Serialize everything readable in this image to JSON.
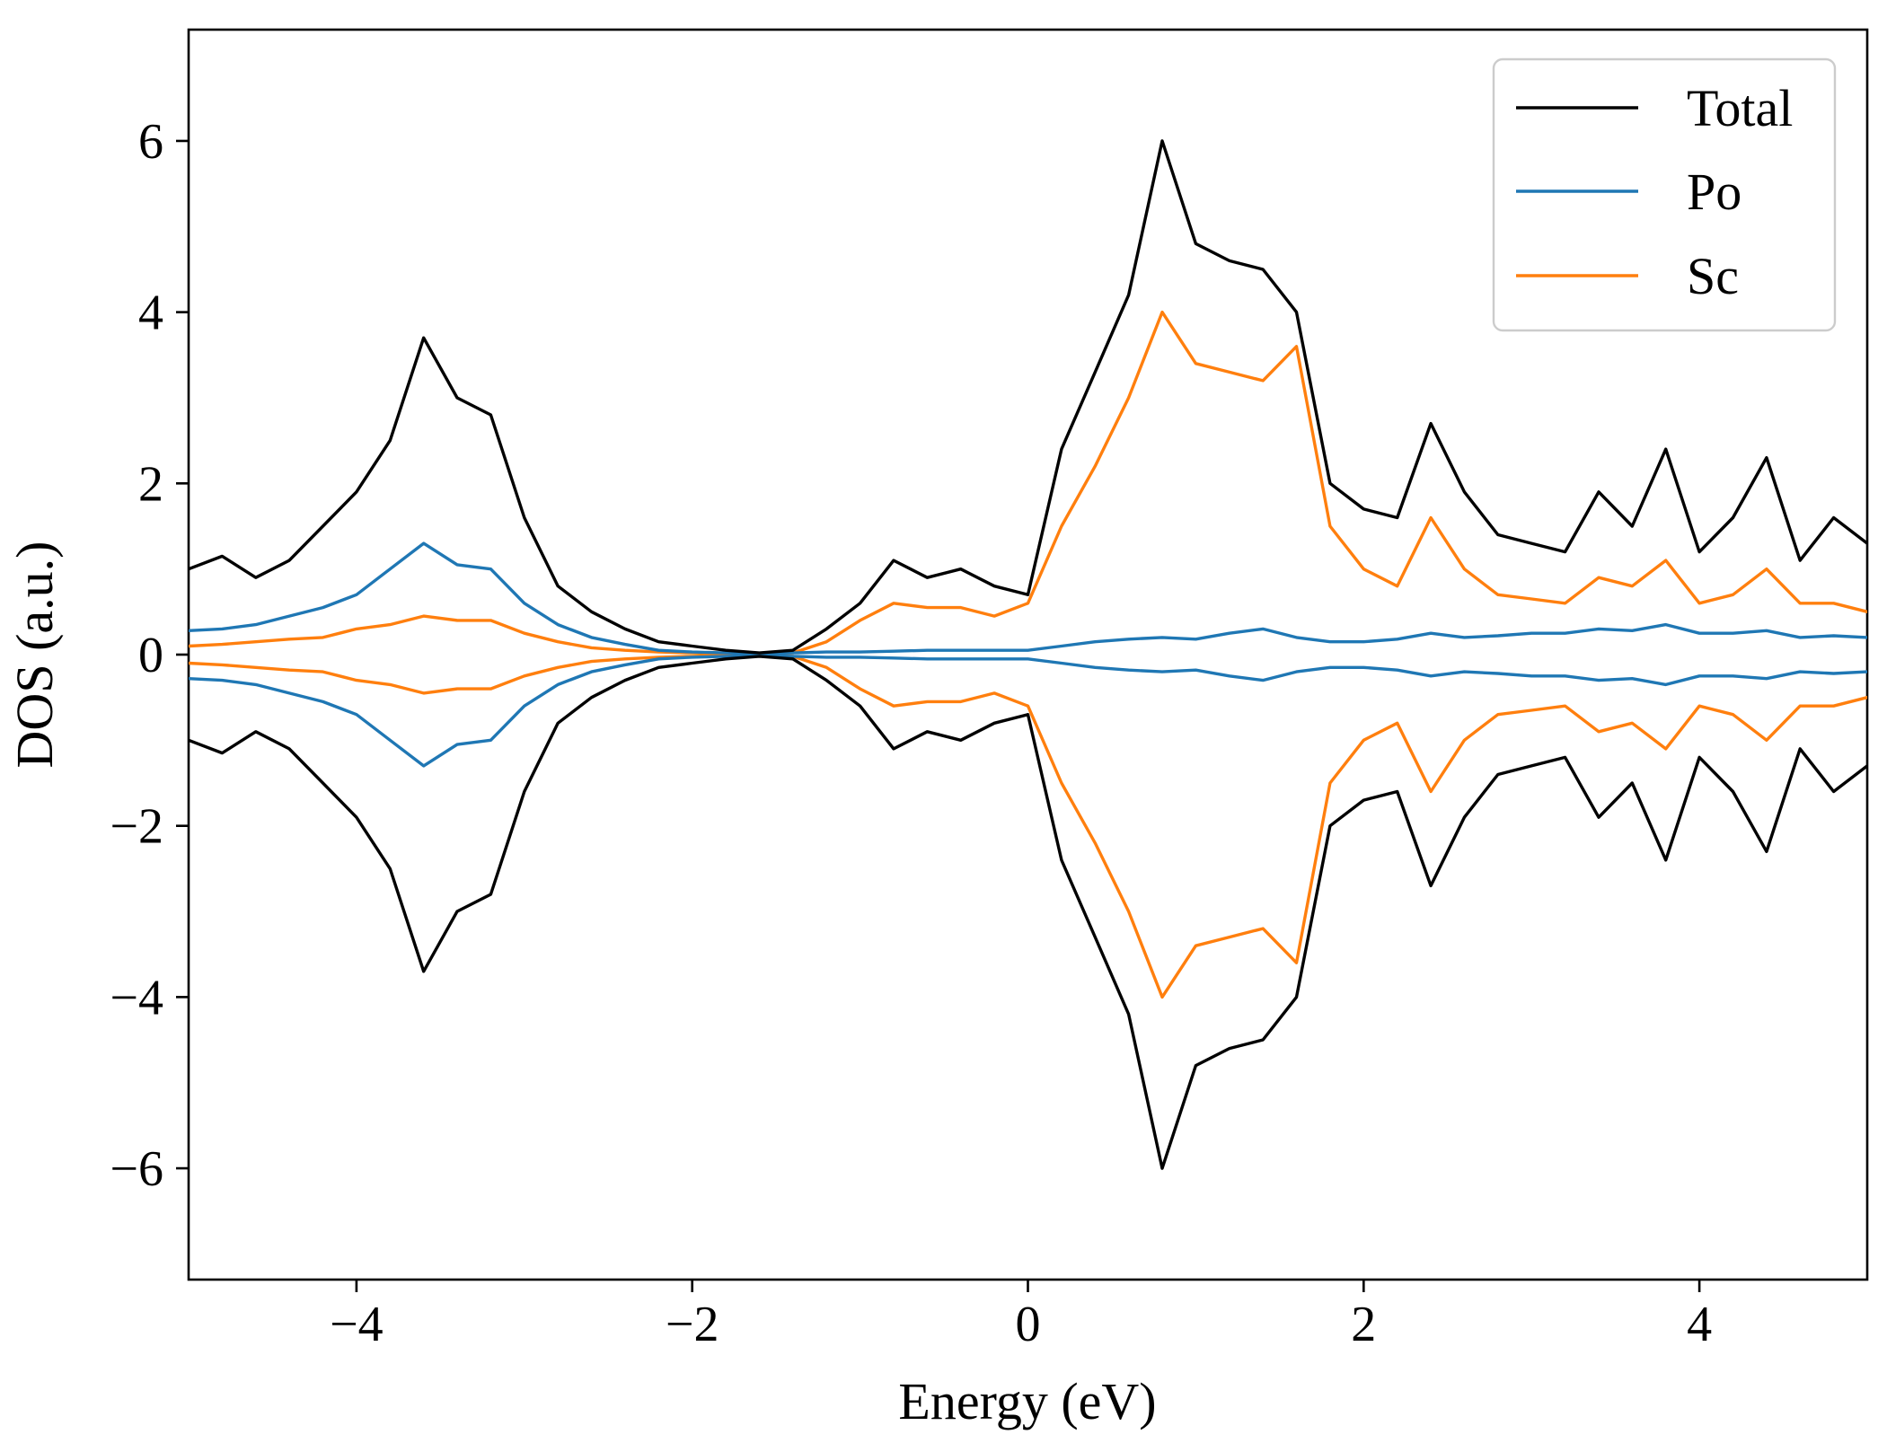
{
  "chart_data": {
    "type": "line",
    "title": "",
    "xlabel": "Energy (eV)",
    "ylabel": "DOS (a.u.)",
    "xlim": [
      -5,
      5
    ],
    "ylim": [
      -7.3,
      7.3
    ],
    "xticks": [
      -4,
      -2,
      0,
      2,
      4
    ],
    "xtick_labels": [
      "−4",
      "−2",
      "0",
      "2",
      "4"
    ],
    "yticks": [
      -6,
      -4,
      -2,
      0,
      2,
      4,
      6
    ],
    "ytick_labels": [
      "−6",
      "−4",
      "−2",
      "0",
      "2",
      "4",
      "6"
    ],
    "grid": false,
    "legend_position": "top-right",
    "symmetric_spin": true,
    "x": [
      -5.0,
      -4.8,
      -4.6,
      -4.4,
      -4.2,
      -4.0,
      -3.8,
      -3.6,
      -3.4,
      -3.2,
      -3.0,
      -2.8,
      -2.6,
      -2.4,
      -2.2,
      -2.0,
      -1.8,
      -1.6,
      -1.4,
      -1.2,
      -1.0,
      -0.8,
      -0.6,
      -0.4,
      -0.2,
      0.0,
      0.2,
      0.4,
      0.6,
      0.8,
      1.0,
      1.2,
      1.4,
      1.6,
      1.8,
      2.0,
      2.2,
      2.4,
      2.6,
      2.8,
      3.0,
      3.2,
      3.4,
      3.6,
      3.8,
      4.0,
      4.2,
      4.4,
      4.6,
      4.8,
      5.0
    ],
    "series": [
      {
        "name": "Total",
        "color": "#000000",
        "values": [
          1.0,
          1.15,
          0.9,
          1.1,
          1.5,
          1.9,
          2.5,
          3.7,
          3.0,
          2.8,
          1.6,
          0.8,
          0.5,
          0.3,
          0.15,
          0.1,
          0.05,
          0.02,
          0.05,
          0.3,
          0.6,
          1.1,
          0.9,
          1.0,
          0.8,
          0.7,
          2.4,
          3.3,
          4.2,
          6.0,
          4.8,
          4.6,
          4.5,
          4.0,
          2.0,
          1.7,
          1.6,
          2.7,
          1.9,
          1.4,
          1.3,
          1.2,
          1.9,
          1.5,
          2.4,
          1.2,
          1.6,
          2.3,
          1.1,
          1.6,
          1.3
        ]
      },
      {
        "name": "Po",
        "color": "#1f77b4",
        "values": [
          0.28,
          0.3,
          0.35,
          0.45,
          0.55,
          0.7,
          1.0,
          1.3,
          1.05,
          1.0,
          0.6,
          0.35,
          0.2,
          0.12,
          0.05,
          0.03,
          0.02,
          0.01,
          0.02,
          0.03,
          0.03,
          0.04,
          0.05,
          0.05,
          0.05,
          0.05,
          0.1,
          0.15,
          0.18,
          0.2,
          0.18,
          0.25,
          0.3,
          0.2,
          0.15,
          0.15,
          0.18,
          0.25,
          0.2,
          0.22,
          0.25,
          0.25,
          0.3,
          0.28,
          0.35,
          0.25,
          0.25,
          0.28,
          0.2,
          0.22,
          0.2
        ]
      },
      {
        "name": "Sc",
        "color": "#ff7f0e",
        "values": [
          0.1,
          0.12,
          0.15,
          0.18,
          0.2,
          0.3,
          0.35,
          0.45,
          0.4,
          0.4,
          0.25,
          0.15,
          0.08,
          0.05,
          0.03,
          0.02,
          0.01,
          0.01,
          0.02,
          0.15,
          0.4,
          0.6,
          0.55,
          0.55,
          0.45,
          0.6,
          1.5,
          2.2,
          3.0,
          4.0,
          3.4,
          3.3,
          3.2,
          3.6,
          1.5,
          1.0,
          0.8,
          1.6,
          1.0,
          0.7,
          0.65,
          0.6,
          0.9,
          0.8,
          1.1,
          0.6,
          0.7,
          1.0,
          0.6,
          0.6,
          0.5
        ]
      }
    ]
  }
}
